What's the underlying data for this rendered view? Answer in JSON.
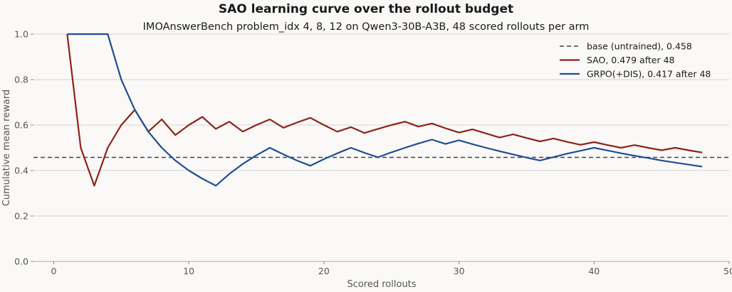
{
  "chart_data": {
    "type": "line",
    "title": "SAO learning curve over the rollout budget",
    "subtitle": "IMOAnswerBench problem_idx 4, 8, 12 on Qwen3-30B-A3B, 48 scored rollouts per arm",
    "xlabel": "Scored rollouts",
    "ylabel": "Cumulative mean reward",
    "xlim": [
      -1.5,
      50
    ],
    "ylim": [
      0,
      1.0
    ],
    "xticks": [
      0,
      10,
      20,
      30,
      40,
      50
    ],
    "yticks": [
      0.0,
      0.2,
      0.4,
      0.6,
      0.8,
      1.0
    ],
    "xtick_labels": [
      "0",
      "10",
      "20",
      "30",
      "40",
      "50"
    ],
    "ytick_labels": [
      "0.0",
      "0.2",
      "0.4",
      "0.6",
      "0.8",
      "1.0"
    ],
    "grid": "horizontal",
    "legend_position": "top-right",
    "baseline": {
      "name": "base (untrained), 0.458",
      "value": 0.458,
      "color": "#444444",
      "style": "dashed"
    },
    "series": [
      {
        "name": "SAO, 0.479 after 48",
        "color": "#8c2318",
        "x": [
          1,
          2,
          3,
          4,
          5,
          6,
          7,
          8,
          9,
          10,
          11,
          12,
          13,
          14,
          15,
          16,
          17,
          18,
          19,
          20,
          21,
          22,
          23,
          24,
          25,
          26,
          27,
          28,
          29,
          30,
          31,
          32,
          33,
          34,
          35,
          36,
          37,
          38,
          39,
          40,
          41,
          42,
          43,
          44,
          45,
          46,
          47,
          48
        ],
        "values": [
          1.0,
          0.5,
          0.333,
          0.5,
          0.6,
          0.667,
          0.571,
          0.625,
          0.556,
          0.6,
          0.636,
          0.583,
          0.615,
          0.571,
          0.6,
          0.625,
          0.588,
          0.611,
          0.632,
          0.6,
          0.571,
          0.591,
          0.565,
          0.583,
          0.6,
          0.615,
          0.593,
          0.607,
          0.586,
          0.567,
          0.581,
          0.563,
          0.545,
          0.559,
          0.543,
          0.528,
          0.541,
          0.526,
          0.513,
          0.525,
          0.512,
          0.5,
          0.512,
          0.5,
          0.489,
          0.5,
          0.489,
          0.479
        ]
      },
      {
        "name": "GRPO(+DIS), 0.417 after 48",
        "color": "#1f4e96",
        "x": [
          1,
          2,
          3,
          4,
          5,
          6,
          7,
          8,
          9,
          10,
          11,
          12,
          13,
          14,
          15,
          16,
          17,
          18,
          19,
          20,
          21,
          22,
          23,
          24,
          25,
          26,
          27,
          28,
          29,
          30,
          31,
          32,
          33,
          34,
          35,
          36,
          37,
          38,
          39,
          40,
          41,
          42,
          43,
          44,
          45,
          46,
          47,
          48
        ],
        "values": [
          1.0,
          1.0,
          1.0,
          1.0,
          0.8,
          0.667,
          0.571,
          0.5,
          0.444,
          0.4,
          0.364,
          0.333,
          0.385,
          0.429,
          0.467,
          0.5,
          0.471,
          0.444,
          0.421,
          0.45,
          0.476,
          0.5,
          0.478,
          0.458,
          0.48,
          0.5,
          0.519,
          0.536,
          0.517,
          0.533,
          0.516,
          0.5,
          0.485,
          0.471,
          0.457,
          0.444,
          0.459,
          0.474,
          0.487,
          0.5,
          0.488,
          0.476,
          0.465,
          0.455,
          0.444,
          0.435,
          0.426,
          0.417
        ]
      }
    ]
  }
}
